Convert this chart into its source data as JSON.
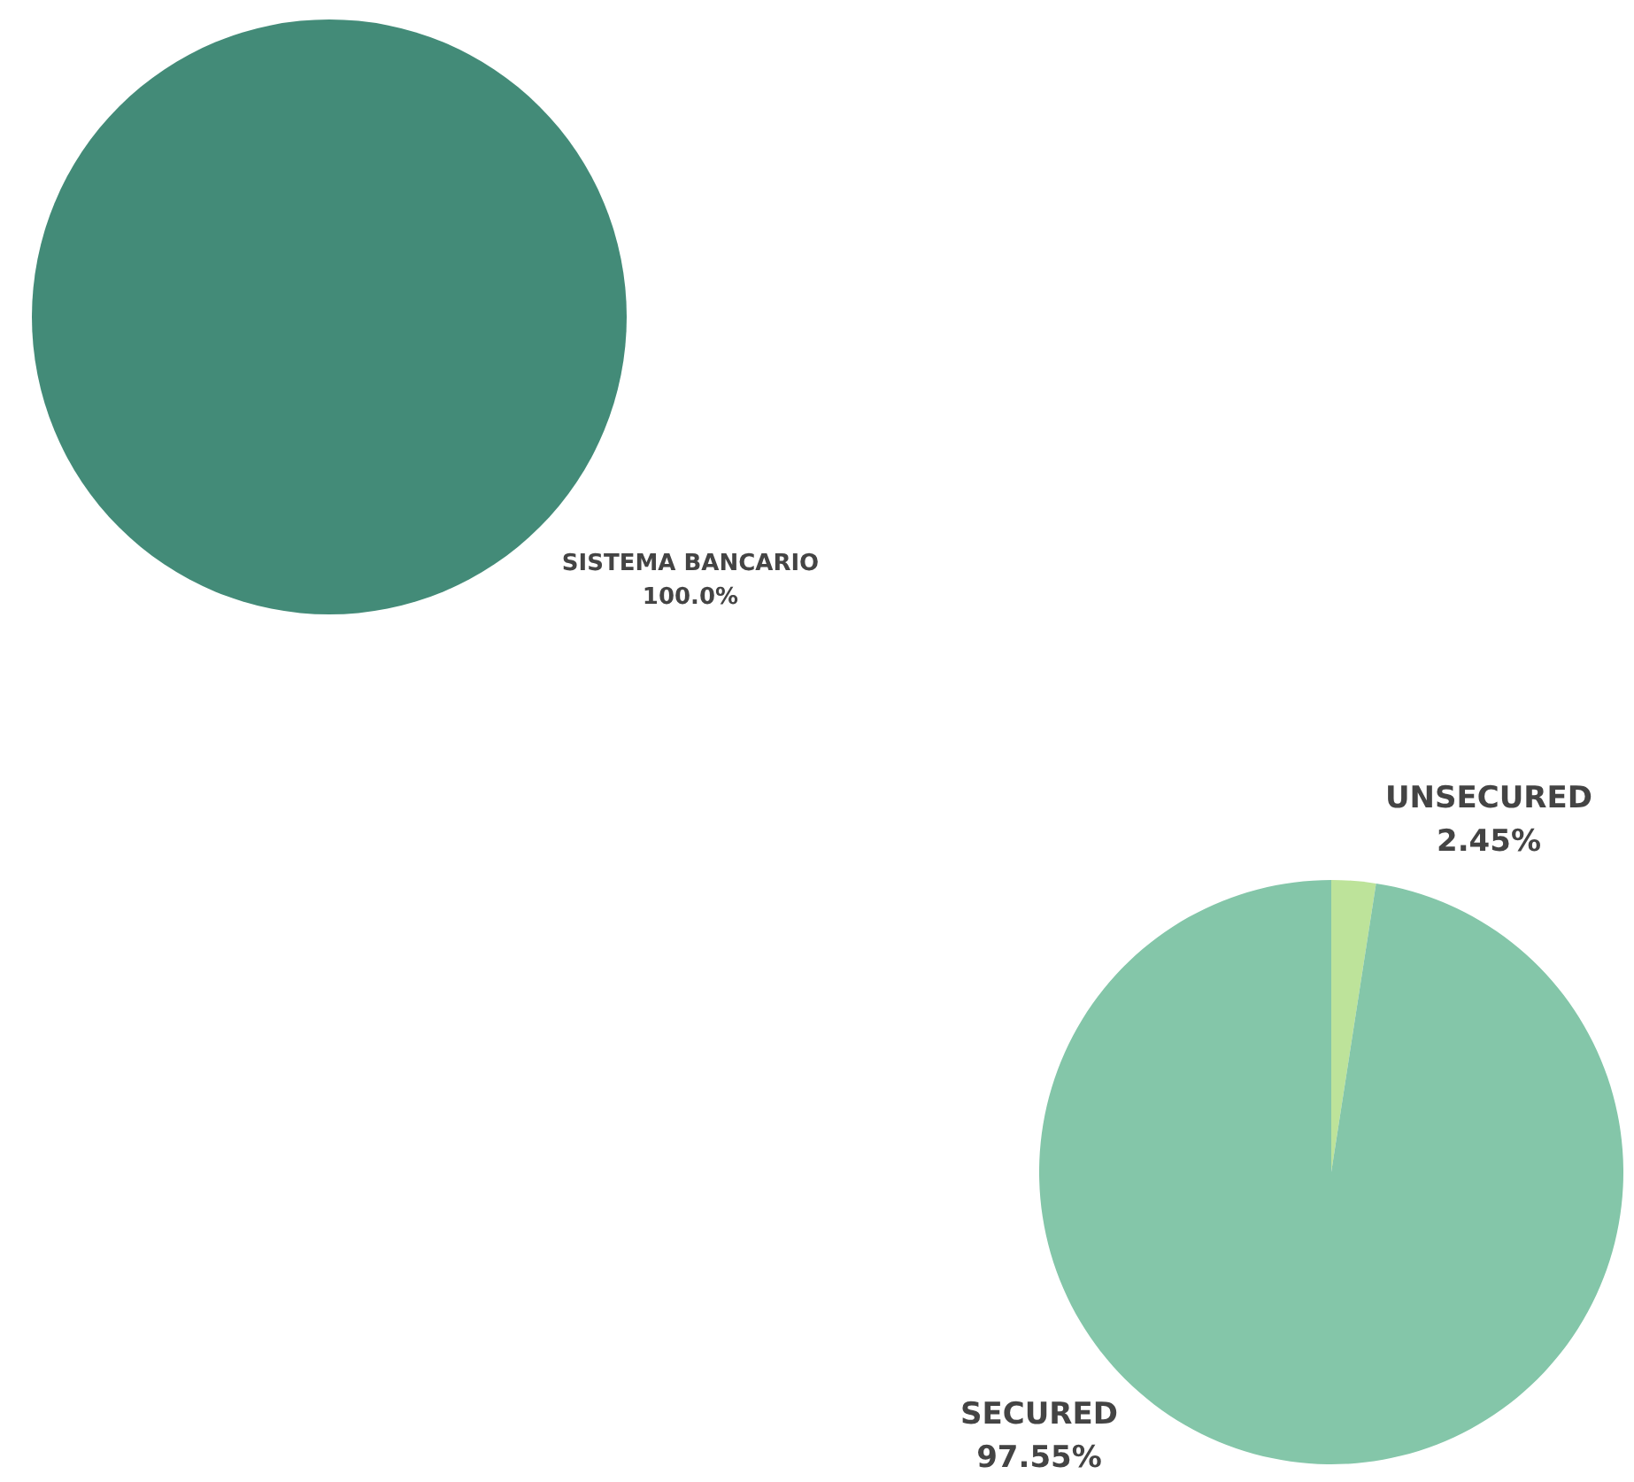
{
  "chart_data": [
    {
      "type": "pie",
      "categories": [
        "SISTEMA BANCARIO"
      ],
      "values": [
        100
      ],
      "colors": [
        "#438b78"
      ],
      "value_labels": [
        "100.0%"
      ]
    },
    {
      "type": "pie",
      "categories": [
        "UNSECURED",
        "SECURED"
      ],
      "values": [
        2.45,
        97.55
      ],
      "colors": [
        "#bde39a",
        "#84c6a9"
      ],
      "value_labels": [
        "2.45%",
        "97.55%"
      ]
    }
  ]
}
